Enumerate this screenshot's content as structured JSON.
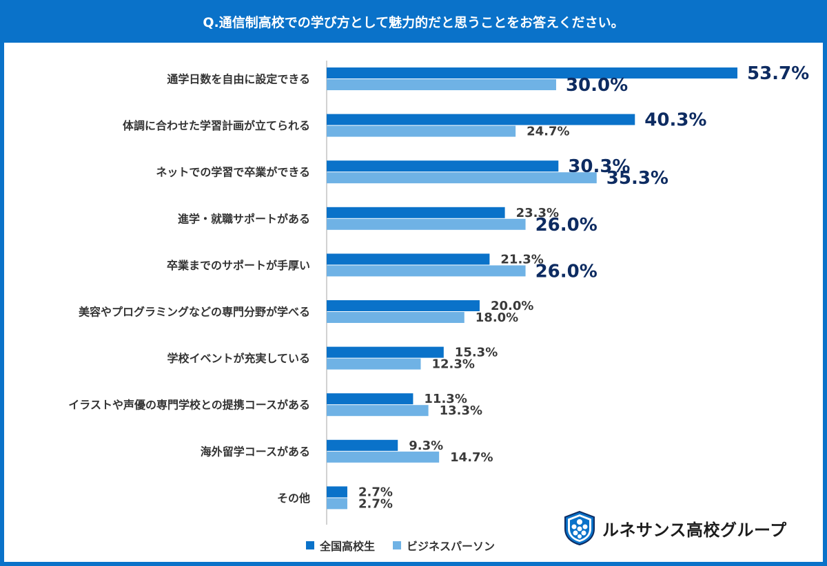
{
  "header": {
    "title": "Q.通信制高校での学び方として魅力的だと思うことをお答えください。"
  },
  "colors": {
    "primary": "#0a72c9",
    "secondary": "#6fb2e5",
    "highlight_text": "#0d2b61",
    "normal_text": "#3a3a3a"
  },
  "legend": {
    "series_a": "全国高校生",
    "series_b": "ビジネスパーソン"
  },
  "logo": {
    "text": "ルネサンス高校グループ",
    "icon": "shield-emblem-icon"
  },
  "chart_data": {
    "type": "bar",
    "orientation": "horizontal",
    "unit": "%",
    "xlim": [
      0,
      55
    ],
    "categories": [
      "通学日数を自由に設定できる",
      "体調に合わせた学習計画が立てられる",
      "ネットでの学習で卒業ができる",
      "進学・就職サポートがある",
      "卒業までのサポートが手厚い",
      "美容やプログラミングなどの専門分野が学べる",
      "学校イベントが充実している",
      "イラストや声優の専門学校との提携コースがある",
      "海外留学コースがある",
      "その他"
    ],
    "series": [
      {
        "name": "全国高校生",
        "color": "#0a72c9",
        "values": [
          53.7,
          40.3,
          30.3,
          23.3,
          21.3,
          20.0,
          15.3,
          11.3,
          9.3,
          2.7
        ],
        "labels": [
          "53.7%",
          "40.3%",
          "30.3%",
          "23.3%",
          "21.3%",
          "20.0%",
          "15.3%",
          "11.3%",
          "9.3%",
          "2.7%"
        ],
        "emphasized": [
          true,
          true,
          true,
          false,
          false,
          false,
          false,
          false,
          false,
          false
        ]
      },
      {
        "name": "ビジネスパーソン",
        "color": "#6fb2e5",
        "values": [
          30.0,
          24.7,
          35.3,
          26.0,
          26.0,
          18.0,
          12.3,
          13.3,
          14.7,
          2.7
        ],
        "labels": [
          "30.0%",
          "24.7%",
          "35.3%",
          "26.0%",
          "26.0%",
          "18.0%",
          "12.3%",
          "13.3%",
          "14.7%",
          "2.7%"
        ],
        "emphasized": [
          true,
          false,
          true,
          true,
          true,
          false,
          false,
          false,
          false,
          false
        ]
      }
    ]
  }
}
